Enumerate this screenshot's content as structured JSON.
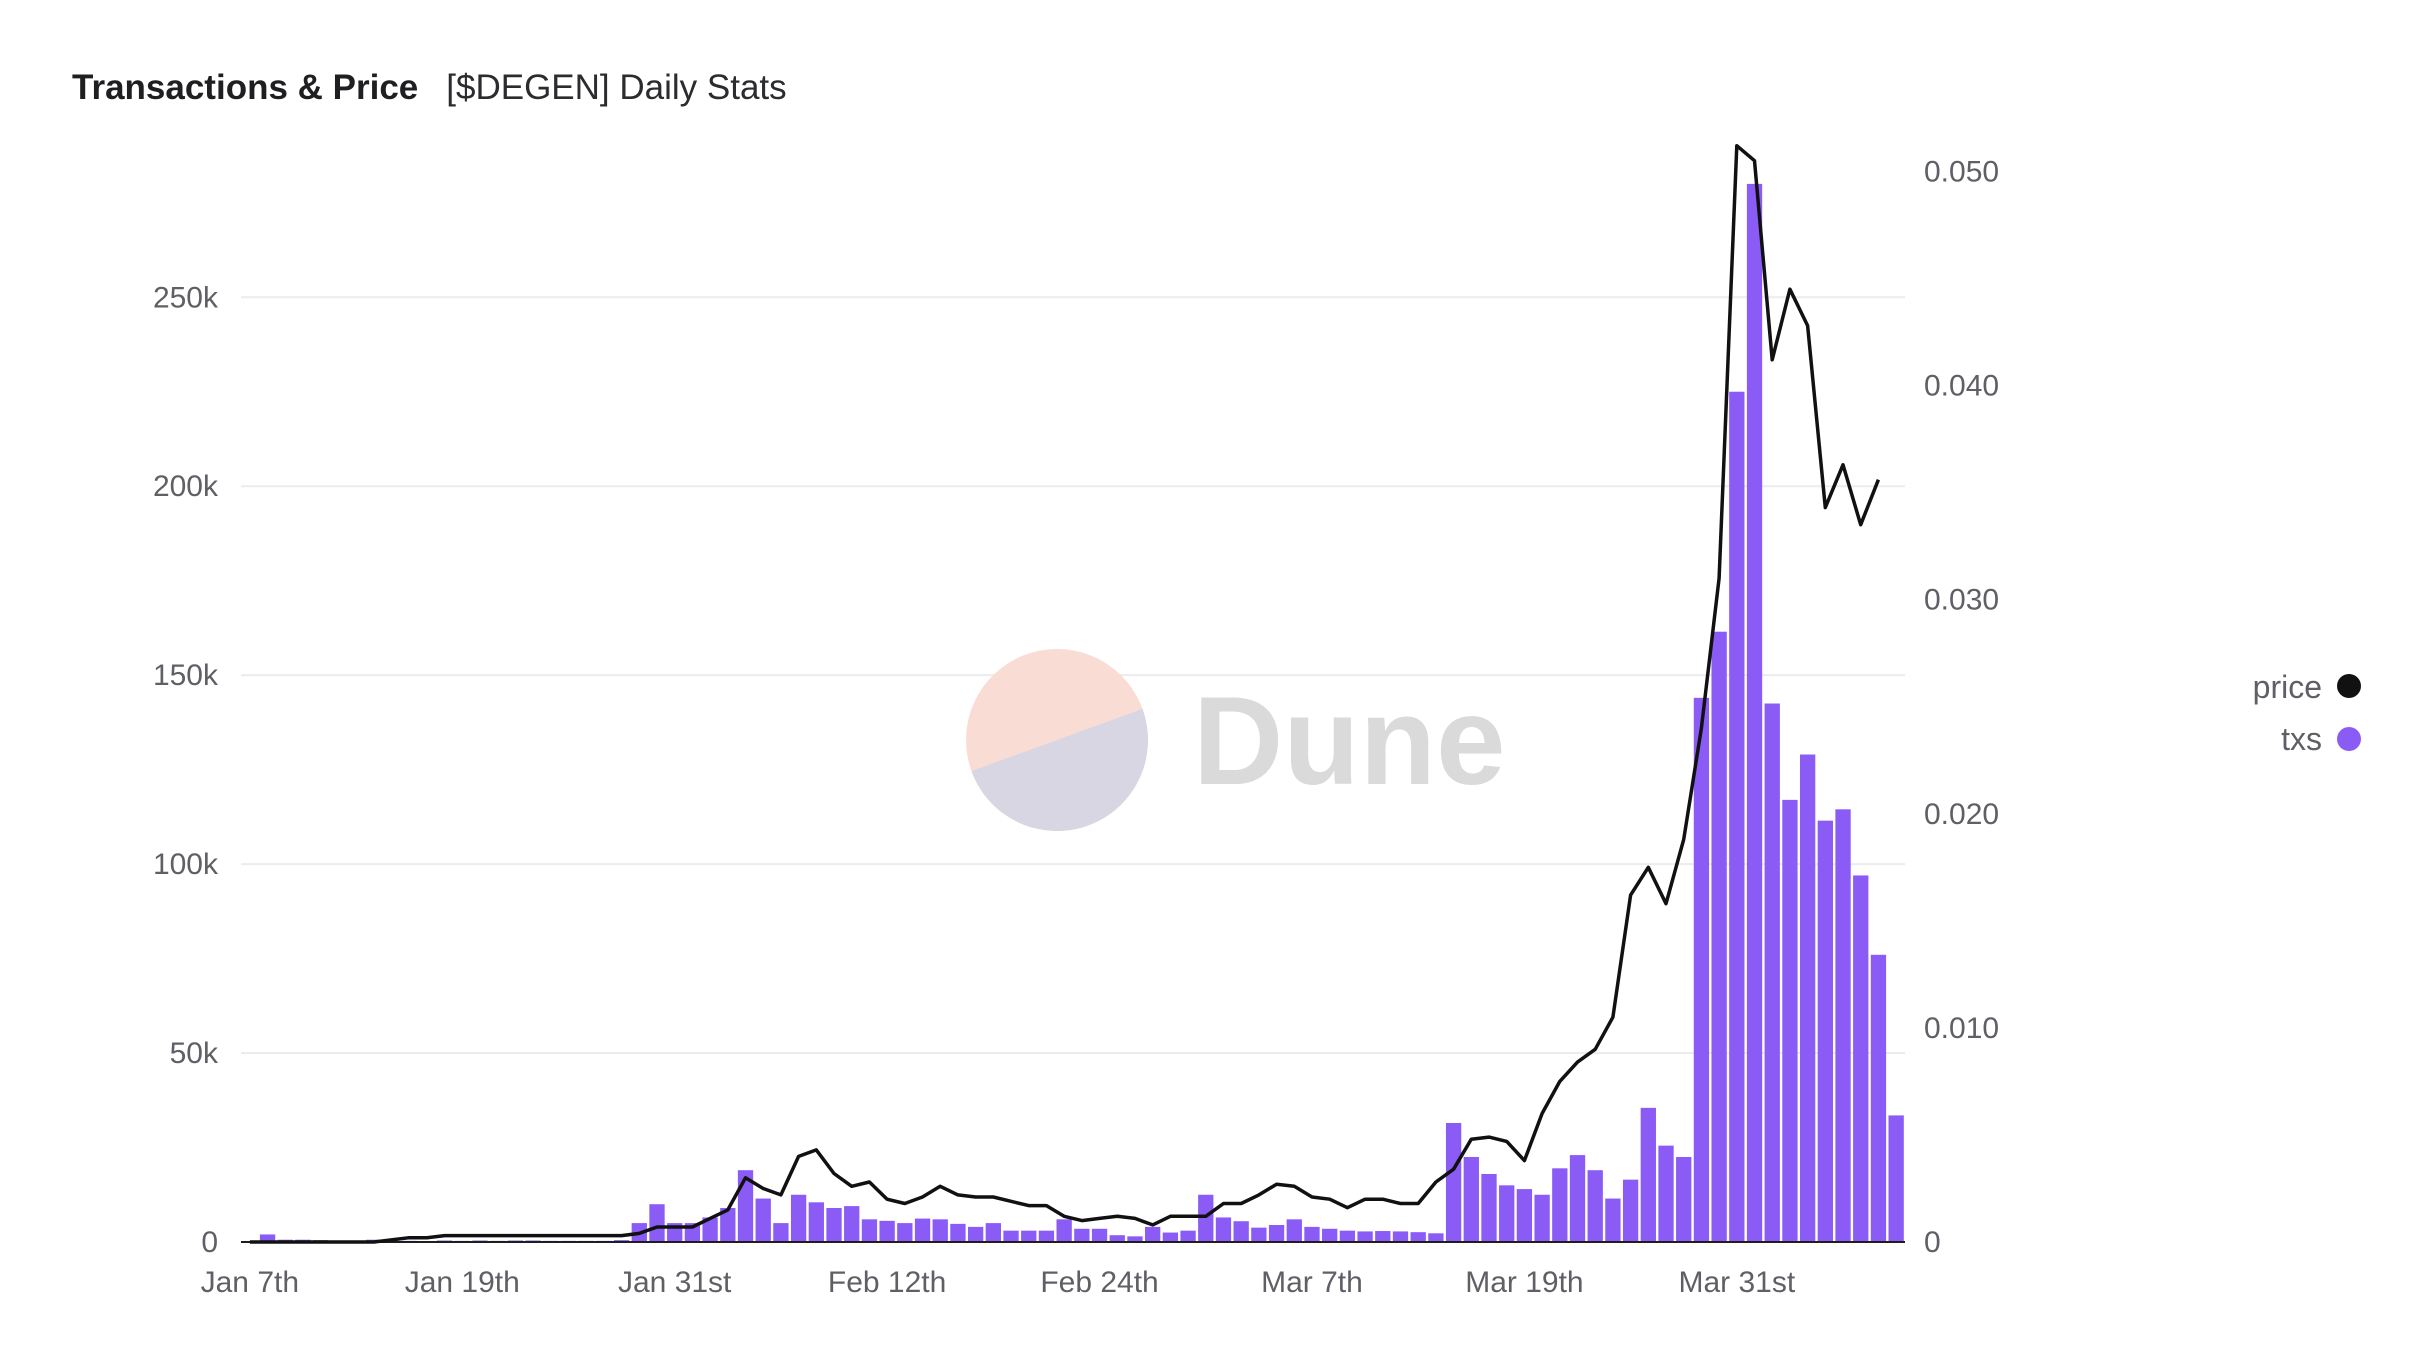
{
  "header": {
    "title": "Transactions & Price",
    "subtitle": "[$DEGEN] Daily Stats"
  },
  "watermark": {
    "text": "Dune",
    "colors": [
      "#f9ddd5",
      "#d8d6e3"
    ]
  },
  "chart_data": {
    "type": "bar+line",
    "start_date": "2024-01-07",
    "x_tick_labels": [
      "Jan 7th",
      "Jan 19th",
      "Jan 31st",
      "Feb 12th",
      "Feb 24th",
      "Mar 7th",
      "Mar 19th",
      "Mar 31st"
    ],
    "y_left": {
      "ticks": [
        0,
        50000,
        100000,
        150000,
        200000,
        250000
      ],
      "tick_labels": [
        "0",
        "50k",
        "100k",
        "150k",
        "200k",
        "250k"
      ],
      "range": [
        0,
        285000
      ]
    },
    "y_right": {
      "ticks": [
        0,
        0.01,
        0.02,
        0.03,
        0.04,
        0.05
      ],
      "tick_labels": [
        "0",
        "0.010",
        "0.020",
        "0.030",
        "0.040",
        "0.050"
      ],
      "range": [
        0,
        0.0503
      ]
    },
    "grid": true,
    "legend_position": "right",
    "series": [
      {
        "name": "price",
        "type": "line",
        "axis": "right",
        "color": "#111111",
        "values": [
          0,
          0,
          0,
          0,
          0,
          0,
          0,
          0,
          0.0001,
          0.0002,
          0.0002,
          0.0003,
          0.0003,
          0.0003,
          0.0003,
          0.0003,
          0.0003,
          0.0003,
          0.0003,
          0.0003,
          0.0003,
          0.0003,
          0.0004,
          0.0007,
          0.0007,
          0.0007,
          0.0011,
          0.0015,
          0.003,
          0.0025,
          0.0022,
          0.004,
          0.0043,
          0.0032,
          0.0026,
          0.0028,
          0.002,
          0.0018,
          0.0021,
          0.0026,
          0.0022,
          0.0021,
          0.0021,
          0.0019,
          0.0017,
          0.0017,
          0.0012,
          0.001,
          0.0011,
          0.0012,
          0.0011,
          0.0008,
          0.0012,
          0.0012,
          0.0012,
          0.0018,
          0.0018,
          0.0022,
          0.0027,
          0.0026,
          0.0021,
          0.002,
          0.0016,
          0.002,
          0.002,
          0.0018,
          0.0018,
          0.0028,
          0.0034,
          0.0048,
          0.0049,
          0.0047,
          0.0038,
          0.006,
          0.0075,
          0.0084,
          0.009,
          0.0105,
          0.0162,
          0.0175,
          0.0158,
          0.0188,
          0.024,
          0.031,
          0.0512,
          0.0505,
          0.0412,
          0.0445,
          0.0428,
          0.0343,
          0.0363,
          0.0335,
          0.0356
        ]
      },
      {
        "name": "txs",
        "type": "bar",
        "axis": "left",
        "color": "#8a5cf5",
        "values": [
          0,
          2000,
          600,
          600,
          500,
          300,
          300,
          600,
          300,
          300,
          200,
          400,
          300,
          400,
          300,
          400,
          400,
          300,
          300,
          300,
          300,
          500,
          5000,
          10000,
          5000,
          5000,
          6500,
          9000,
          19000,
          11500,
          5000,
          12500,
          10500,
          9000,
          9500,
          6000,
          5600,
          5000,
          6200,
          6000,
          4800,
          4000,
          5000,
          3000,
          3000,
          3000,
          6000,
          3500,
          3500,
          1800,
          1500,
          4000,
          2500,
          3000,
          12500,
          6500,
          5500,
          3800,
          4500,
          6000,
          4000,
          3500,
          3000,
          2800,
          2900,
          2800,
          2600,
          2300,
          31500,
          22500,
          18000,
          15000,
          14000,
          12500,
          19500,
          23000,
          19000,
          11500,
          16500,
          35500,
          25500,
          22500,
          144000,
          161500,
          225000,
          280000,
          142500,
          117000,
          129000,
          111500,
          114500,
          97000,
          76000,
          33500
        ]
      }
    ]
  }
}
